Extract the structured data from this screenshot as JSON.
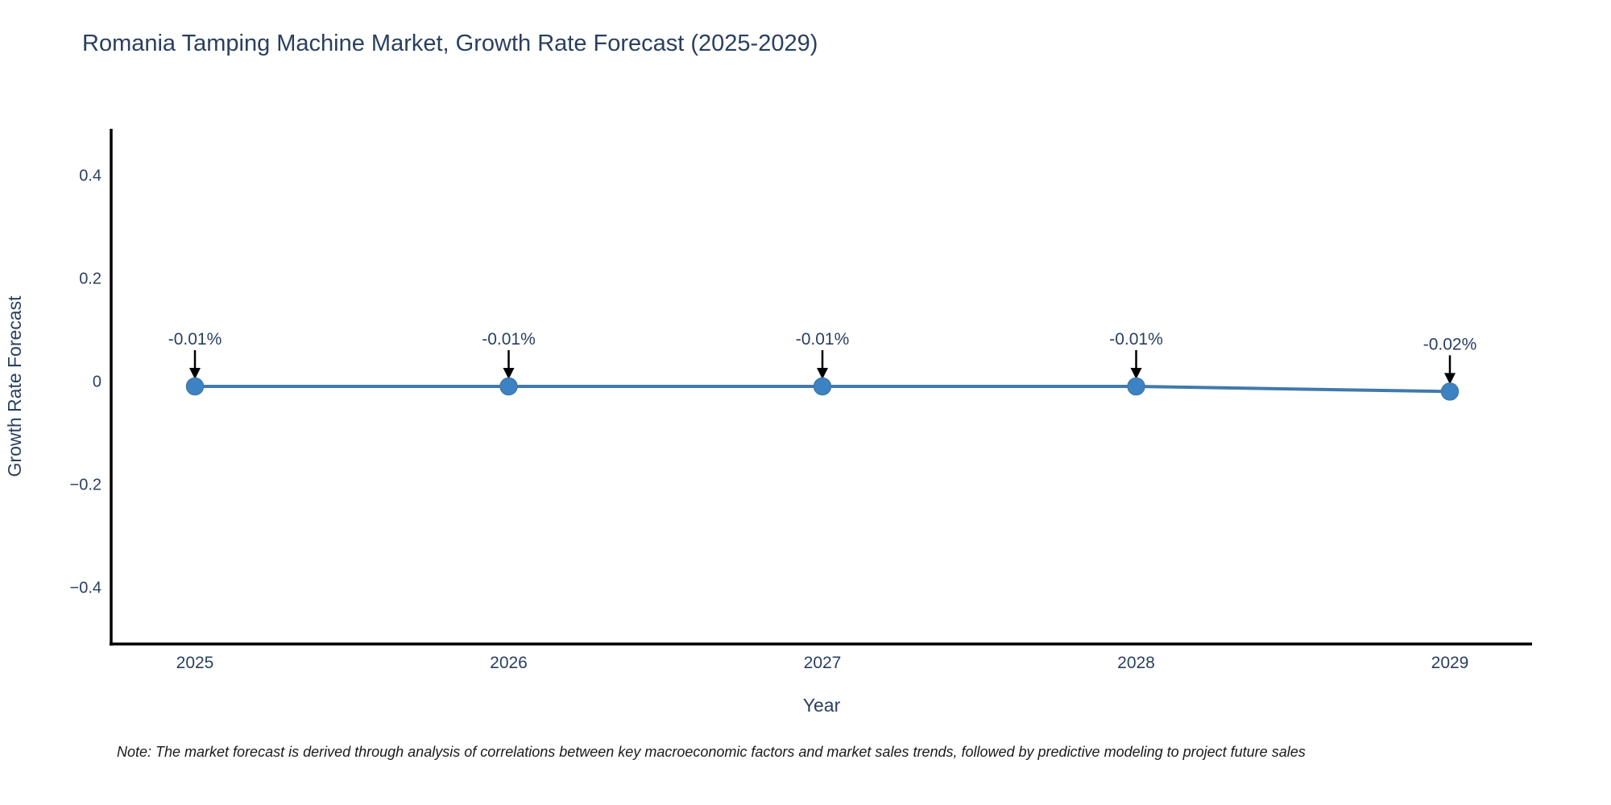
{
  "chart_data": {
    "type": "line",
    "title": "Romania Tamping Machine Market, Growth Rate Forecast (2025-2029)",
    "xlabel": "Year",
    "ylabel": "Growth Rate Forecast",
    "x": [
      2025,
      2026,
      2027,
      2028,
      2029
    ],
    "series": [
      {
        "name": "Growth Rate Forecast",
        "values": [
          -0.01,
          -0.01,
          -0.01,
          -0.01,
          -0.02
        ],
        "point_labels": [
          "-0.01%",
          "-0.01%",
          "-0.01%",
          "-0.01%",
          "-0.02%"
        ]
      }
    ],
    "xtick_labels": [
      "2025",
      "2026",
      "2027",
      "2028",
      "2029"
    ],
    "ytick_values": [
      0.4,
      0.2,
      0,
      -0.2,
      -0.4
    ],
    "ytick_labels": [
      "0.4",
      "0.2",
      "0",
      "−0.2",
      "−0.4"
    ],
    "ylim": [
      -0.51,
      0.49
    ],
    "grid": false,
    "legend": "none",
    "colors": {
      "line": "#4179ab",
      "marker": "#3d82c3",
      "axis": "#000000",
      "text": "#2a3f5f",
      "annotation_text": "#2a3f5f",
      "annotation_arrow": "#000000"
    }
  },
  "note": {
    "text": "Note: The market forecast is derived through analysis of correlations between key macroeconomic factors and market sales trends, followed by predictive modeling to project future sales"
  }
}
